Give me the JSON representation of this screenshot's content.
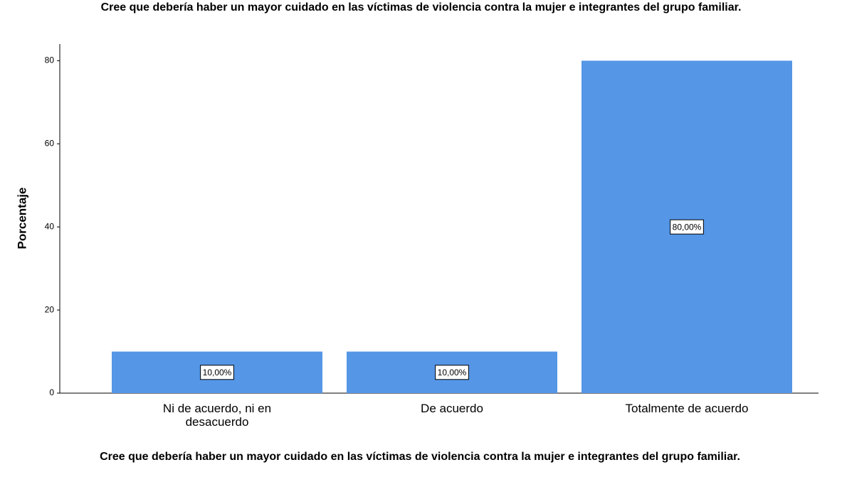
{
  "chart_data": {
    "type": "bar",
    "title": "Cree que debería haber un mayor cuidado en las víctimas de violencia contra la mujer e integrantes del grupo familiar.",
    "x_label": "Cree que debería haber un mayor cuidado en las víctimas de violencia contra la mujer e integrantes del grupo familiar.",
    "y_label": "Porcentaje",
    "categories": [
      "Ni de acuerdo, ni en desacuerdo",
      "De acuerdo",
      "Totalmente de acuerdo"
    ],
    "values": [
      10,
      10,
      80
    ],
    "value_labels": [
      "10,00%",
      "10,00%",
      "80,00%"
    ],
    "color": "#5596e6",
    "ylim": [
      0,
      84
    ],
    "yticks": [
      0,
      20,
      40,
      60,
      80
    ],
    "grid": false
  }
}
